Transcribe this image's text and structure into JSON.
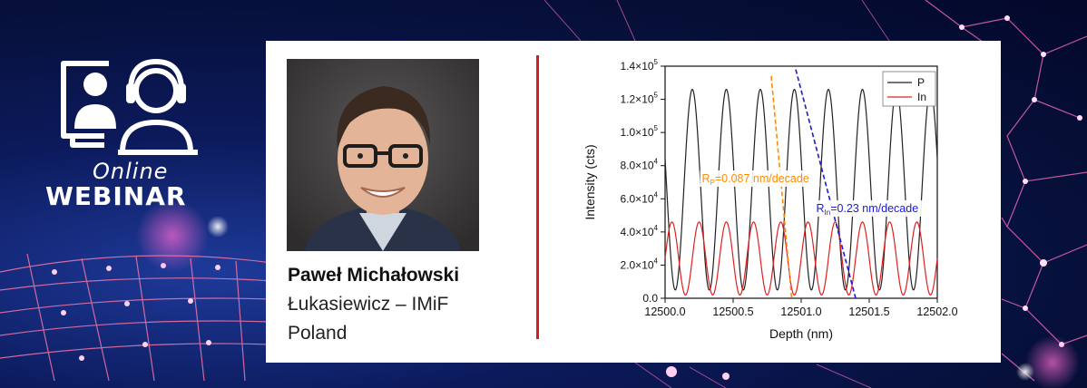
{
  "logo": {
    "online": "Online",
    "webinar": "WEBINAR",
    "icon": "video-conference-icon"
  },
  "speaker": {
    "name": "Paweł Michałowski",
    "affiliation_line1": "Łukasiewicz – IMiF",
    "affiliation_line2": "Poland"
  },
  "colors": {
    "accent_red": "#d71920",
    "series_P": "#222222",
    "series_In": "#e02020",
    "fit_P": "#ff8c00",
    "fit_In": "#1a1adb"
  },
  "chart_data": {
    "type": "line",
    "xlabel": "Depth (nm)",
    "ylabel": "Intensity (cts)",
    "xlim": [
      12500.0,
      12502.0
    ],
    "ylim": [
      0,
      140000
    ],
    "xticks": [
      "12500.0",
      "12500.5",
      "12501.0",
      "12501.5",
      "12502.0"
    ],
    "yticks": [
      {
        "value": 0,
        "mant": "0.0",
        "exp": ""
      },
      {
        "value": 20000,
        "mant": "2.0×10",
        "exp": "4"
      },
      {
        "value": 40000,
        "mant": "4.0×10",
        "exp": "4"
      },
      {
        "value": 60000,
        "mant": "6.0×10",
        "exp": "4"
      },
      {
        "value": 80000,
        "mant": "8.0×10",
        "exp": "4"
      },
      {
        "value": 100000,
        "mant": "1.0×10",
        "exp": "5"
      },
      {
        "value": 120000,
        "mant": "1.2×10",
        "exp": "5"
      },
      {
        "value": 140000,
        "mant": "1.4×10",
        "exp": "5"
      }
    ],
    "legend_position": "top-right",
    "series": [
      {
        "name": "P",
        "color": "#222222",
        "period": 0.25,
        "peak_x": 12500.2,
        "min": 5000,
        "max": 126000
      },
      {
        "name": "In",
        "color": "#e02020",
        "period": 0.2,
        "peak_x": 12500.05,
        "min": 2000,
        "max": 46000
      }
    ],
    "annotations": [
      {
        "id": "rp",
        "text_main": "R",
        "text_sub": "P",
        "text_rest": "=0.087 nm/decade",
        "color": "#ff8c00",
        "x": 12500.27,
        "y": 70000,
        "line": [
          [
            12500.78,
            134000
          ],
          [
            12500.93,
            0
          ]
        ]
      },
      {
        "id": "rin",
        "text_main": "R",
        "text_sub": "In",
        "text_rest": "=0.23 nm/decade",
        "color": "#1a1adb",
        "x": 12501.11,
        "y": 52000,
        "line": [
          [
            12500.96,
            138000
          ],
          [
            12501.4,
            0
          ]
        ]
      }
    ]
  }
}
